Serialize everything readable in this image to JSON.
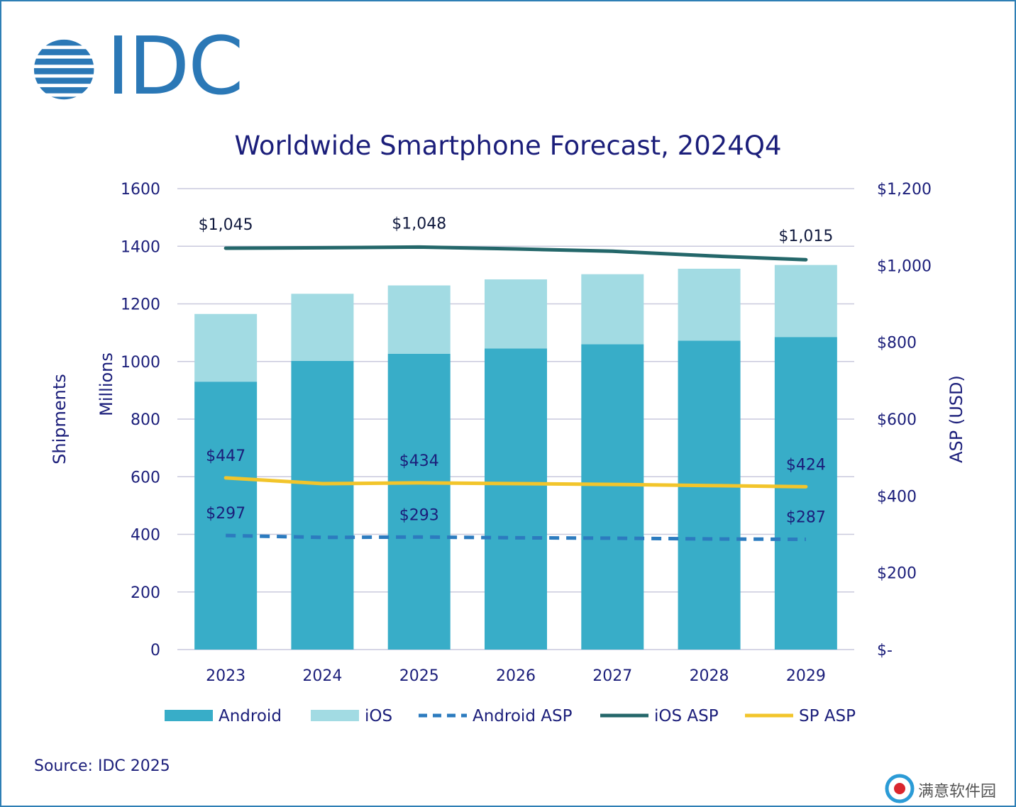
{
  "logo": {
    "text": "IDC",
    "color": "#2b78b6"
  },
  "title": "Worldwide Smartphone Forecast, 2024Q4",
  "source": "Source: IDC 2025",
  "watermark": "满意软件园",
  "chart_data": {
    "type": "bar",
    "title": "Worldwide Smartphone Forecast, 2024Q4",
    "categories": [
      "2023",
      "2024",
      "2025",
      "2026",
      "2027",
      "2028",
      "2029"
    ],
    "ylabel_outer": "Shipments",
    "ylabel_inner": "Millions",
    "y2label": "ASP (USD)",
    "ylim": [
      0,
      1600
    ],
    "y2lim": [
      0,
      1200
    ],
    "yticks": [
      "1600",
      "1400",
      "1200",
      "1000",
      "800",
      "600",
      "400",
      "200",
      "0"
    ],
    "y2ticks": [
      "$1,200",
      "$1,000",
      "$800",
      "$600",
      "$400",
      "$200",
      "$-"
    ],
    "grid": true,
    "legend_position": "bottom",
    "stacked_bars": [
      {
        "name": "Android",
        "color": "#38adc8",
        "values": [
          930,
          1002,
          1027,
          1045,
          1060,
          1072,
          1085
        ]
      },
      {
        "name": "iOS",
        "color": "#a2dbe3",
        "values": [
          235,
          233,
          237,
          240,
          243,
          250,
          250
        ]
      }
    ],
    "lines": [
      {
        "name": "Android ASP",
        "color": "#2c7bbf",
        "dashed": true,
        "values": [
          297,
          292,
          293,
          291,
          290,
          288,
          287
        ]
      },
      {
        "name": "iOS ASP",
        "color": "#24676a",
        "dashed": false,
        "values": [
          1045,
          1046,
          1048,
          1043,
          1037,
          1025,
          1015
        ]
      },
      {
        "name": "SP ASP",
        "color": "#f2c52b",
        "dashed": false,
        "values": [
          447,
          432,
          434,
          432,
          430,
          427,
          424
        ]
      }
    ],
    "data_labels": [
      {
        "series": "iOS ASP",
        "label": "$1,045",
        "index": 0
      },
      {
        "series": "iOS ASP",
        "label": "$1,048",
        "index": 2
      },
      {
        "series": "iOS ASP",
        "label": "$1,015",
        "index": 6
      },
      {
        "series": "SP ASP",
        "label": "$447",
        "index": 0
      },
      {
        "series": "SP ASP",
        "label": "$434",
        "index": 2
      },
      {
        "series": "SP ASP",
        "label": "$424",
        "index": 6
      },
      {
        "series": "Android ASP",
        "label": "$297",
        "index": 0
      },
      {
        "series": "Android ASP",
        "label": "$293",
        "index": 2
      },
      {
        "series": "Android ASP",
        "label": "$287",
        "index": 6
      }
    ]
  }
}
